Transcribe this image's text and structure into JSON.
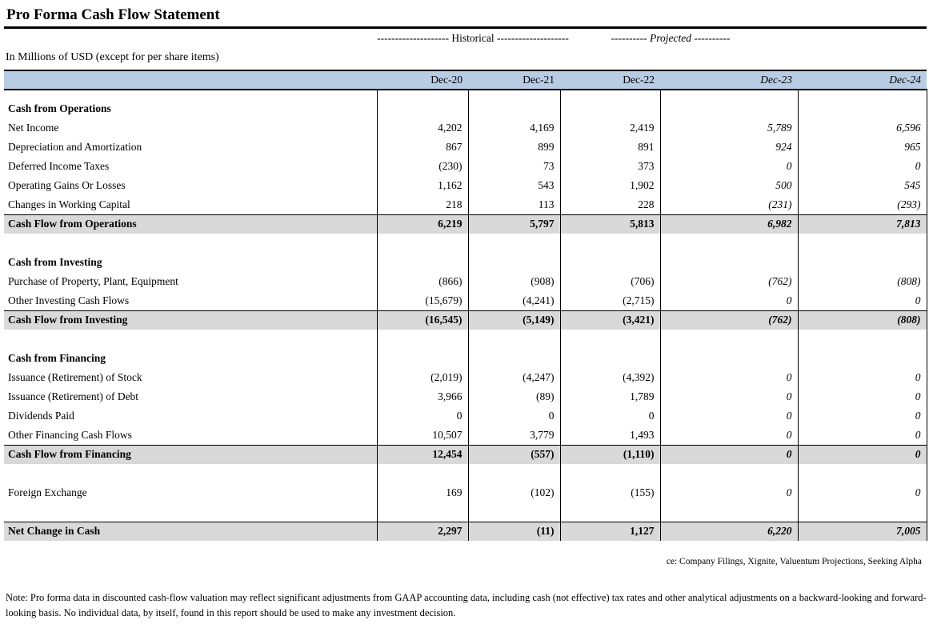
{
  "title": "Pro Forma Cash Flow Statement",
  "units_label": "In Millions of USD (except for per share items)",
  "column_groups": {
    "historical": "-------------------- Historical --------------------",
    "projected": "---------- Projected ----------"
  },
  "colors": {
    "header_bg": "#b8cce4",
    "total_row_bg": "#d9d9d9",
    "border": "#000000"
  },
  "table": {
    "columns": [
      "Dec-20",
      "Dec-21",
      "Dec-22",
      "Dec-23",
      "Dec-24"
    ],
    "projected_column_indexes": [
      3,
      4
    ],
    "rows": [
      {
        "type": "gap-small"
      },
      {
        "type": "section",
        "label": "Cash from Operations"
      },
      {
        "type": "item",
        "label": "Net Income",
        "values": [
          "4,202",
          "4,169",
          "2,419",
          "5,789",
          "6,596"
        ]
      },
      {
        "type": "item",
        "label": "Depreciation and Amortization",
        "values": [
          "867",
          "899",
          "891",
          "924",
          "965"
        ]
      },
      {
        "type": "item",
        "label": "Deferred Income Taxes",
        "values": [
          "(230)",
          "73",
          "373",
          "0",
          "0"
        ]
      },
      {
        "type": "item",
        "label": "Operating Gains Or Losses",
        "values": [
          "1,162",
          "543",
          "1,902",
          "500",
          "545"
        ]
      },
      {
        "type": "item",
        "label": "Changes in Working Capital",
        "values": [
          "218",
          "113",
          "228",
          "(231)",
          "(293)"
        ]
      },
      {
        "type": "total",
        "label": "Cash Flow from Operations",
        "values": [
          "6,219",
          "5,797",
          "5,813",
          "6,982",
          "7,813"
        ]
      },
      {
        "type": "gap"
      },
      {
        "type": "section",
        "label": "Cash from Investing"
      },
      {
        "type": "item",
        "label": "Purchase of Property, Plant, Equipment",
        "values": [
          "(866)",
          "(908)",
          "(706)",
          "(762)",
          "(808)"
        ]
      },
      {
        "type": "item",
        "label": "Other Investing Cash Flows",
        "values": [
          "(15,679)",
          "(4,241)",
          "(2,715)",
          "0",
          "0"
        ]
      },
      {
        "type": "total",
        "label": "Cash Flow from Investing",
        "values": [
          "(16,545)",
          "(5,149)",
          "(3,421)",
          "(762)",
          "(808)"
        ]
      },
      {
        "type": "gap"
      },
      {
        "type": "section",
        "label": "Cash from Financing"
      },
      {
        "type": "item",
        "label": "Issuance (Retirement) of Stock",
        "values": [
          "(2,019)",
          "(4,247)",
          "(4,392)",
          "0",
          "0"
        ]
      },
      {
        "type": "item",
        "label": "Issuance (Retirement) of Debt",
        "values": [
          "3,966",
          "(89)",
          "1,789",
          "0",
          "0"
        ]
      },
      {
        "type": "item",
        "label": "Dividends Paid",
        "values": [
          "0",
          "0",
          "0",
          "0",
          "0"
        ]
      },
      {
        "type": "item",
        "label": "Other Financing Cash Flows",
        "values": [
          "10,507",
          "3,779",
          "1,493",
          "0",
          "0"
        ]
      },
      {
        "type": "total",
        "label": "Cash Flow from Financing",
        "values": [
          "12,454",
          "(557)",
          "(1,110)",
          "0",
          "0"
        ]
      },
      {
        "type": "gap"
      },
      {
        "type": "item",
        "label": "Foreign Exchange",
        "values": [
          "169",
          "(102)",
          "(155)",
          "0",
          "0"
        ]
      },
      {
        "type": "gap"
      },
      {
        "type": "total",
        "label": "Net Change in Cash",
        "values": [
          "2,297",
          "(11)",
          "1,127",
          "6,220",
          "7,005"
        ]
      }
    ]
  },
  "source_line": "ce: Company Filings, Xignite, Valuentum Projections, Seeking Alpha",
  "note": "Note: Pro forma data in discounted cash-flow valuation may reflect significant adjustments from GAAP accounting data, including cash (not effective) tax rates and other analytical adjustments on a backward-looking and forward-looking basis. No individual data, by itself, found in this report should be used to make any investment decision."
}
